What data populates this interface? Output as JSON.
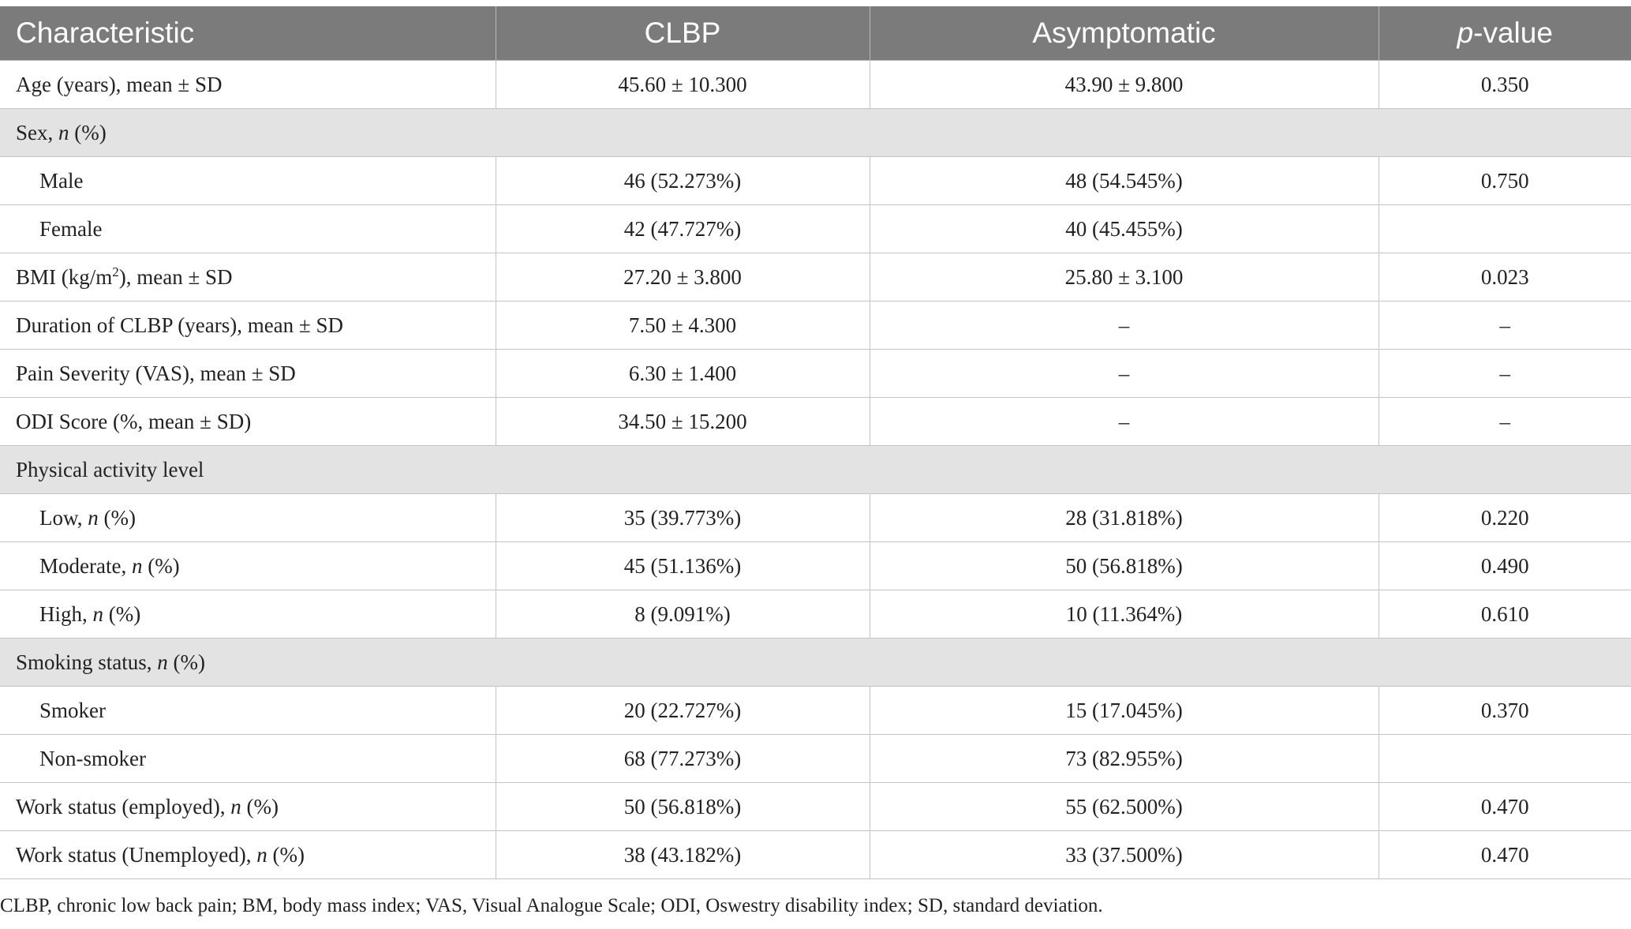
{
  "header": {
    "characteristic": "Characteristic",
    "clbp": "CLBP",
    "asymptomatic": "Asymptomatic",
    "pvalue_italic": "p",
    "pvalue_rest": "-value"
  },
  "rows": [
    {
      "kind": "data",
      "label": "Age (years), mean ± SD",
      "clbp": "45.60 ± 10.300",
      "asym": "43.90 ± 9.800",
      "p": "0.350"
    },
    {
      "kind": "section",
      "label": "Sex, ",
      "label_italic": "n",
      "label_tail": " (%)"
    },
    {
      "kind": "sub",
      "label": "Male",
      "clbp": "46 (52.273%)",
      "asym": "48 (54.545%)",
      "p": "0.750"
    },
    {
      "kind": "sub",
      "label": "Female",
      "clbp": "42 (47.727%)",
      "asym": "40 (45.455%)",
      "p": ""
    },
    {
      "kind": "data",
      "label": "BMI (kg/m",
      "label_sup": "2",
      "label_tail": "), mean ± SD",
      "clbp": "27.20 ± 3.800",
      "asym": "25.80 ± 3.100",
      "p": "0.023"
    },
    {
      "kind": "data",
      "label": "Duration of CLBP (years), mean ± SD",
      "clbp": "7.50 ± 4.300",
      "asym": "–",
      "p": "–"
    },
    {
      "kind": "data",
      "label": "Pain Severity (VAS), mean ± SD",
      "clbp": "6.30 ± 1.400",
      "asym": "–",
      "p": "–"
    },
    {
      "kind": "data",
      "label": "ODI Score (%, mean ± SD)",
      "clbp": "34.50 ± 15.200",
      "asym": "–",
      "p": "–"
    },
    {
      "kind": "section",
      "label": "Physical activity level"
    },
    {
      "kind": "sub",
      "label": "Low, ",
      "label_italic": "n",
      "label_tail": " (%)",
      "clbp": "35 (39.773%)",
      "asym": "28 (31.818%)",
      "p": "0.220"
    },
    {
      "kind": "sub",
      "label": "Moderate, ",
      "label_italic": "n",
      "label_tail": " (%)",
      "clbp": "45 (51.136%)",
      "asym": "50 (56.818%)",
      "p": "0.490"
    },
    {
      "kind": "sub",
      "label": "High, ",
      "label_italic": "n",
      "label_tail": " (%)",
      "clbp": "8 (9.091%)",
      "asym": "10 (11.364%)",
      "p": "0.610"
    },
    {
      "kind": "section",
      "label": "Smoking status, ",
      "label_italic": "n",
      "label_tail": " (%)"
    },
    {
      "kind": "sub",
      "label": "Smoker",
      "clbp": "20 (22.727%)",
      "asym": "15 (17.045%)",
      "p": "0.370"
    },
    {
      "kind": "sub",
      "label": "Non-smoker",
      "clbp": "68 (77.273%)",
      "asym": "73 (82.955%)",
      "p": ""
    },
    {
      "kind": "data",
      "label": "Work status (employed), ",
      "label_italic": "n",
      "label_tail": " (%)",
      "clbp": "50 (56.818%)",
      "asym": "55 (62.500%)",
      "p": "0.470"
    },
    {
      "kind": "data",
      "label": "Work status (Unemployed), ",
      "label_italic": "n",
      "label_tail": " (%)",
      "clbp": "38 (43.182%)",
      "asym": "33 (37.500%)",
      "p": "0.470"
    }
  ],
  "footnote": "CLBP, chronic low back pain; BM, body mass index; VAS, Visual Analogue Scale; ODI, Oswestry disability index; SD, standard deviation."
}
